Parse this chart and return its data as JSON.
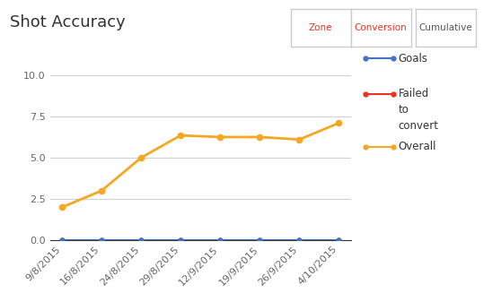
{
  "title": "Shot Accuracy",
  "x_labels": [
    "9/8/2015",
    "16/8/2015",
    "24/8/2015",
    "29/8/2015",
    "12/9/2015",
    "19/9/2015",
    "26/9/2015",
    "4/10/2015"
  ],
  "x_values": [
    0,
    1,
    2,
    3,
    4,
    5,
    6,
    7
  ],
  "goals": [
    0.0,
    0.0,
    0.0,
    0.0,
    0.0,
    0.0,
    0.0,
    0.0
  ],
  "failed_to_convert": [
    0.0,
    0.0,
    0.0,
    0.0,
    0.0,
    0.0,
    0.0,
    0.0
  ],
  "overall": [
    2.0,
    3.0,
    5.0,
    6.35,
    6.25,
    6.25,
    6.1,
    7.1
  ],
  "goals_color": "#4472c4",
  "failed_color": "#e8341c",
  "overall_color": "#f5a623",
  "ylim": [
    0,
    11
  ],
  "yticks": [
    0.0,
    2.5,
    5.0,
    7.5,
    10.0
  ],
  "ytick_labels": [
    "0.0",
    "2.5",
    "5.0",
    "7.5",
    "10.0"
  ],
  "background_color": "#ffffff",
  "grid_color": "#d0d0d0",
  "legend_labels": [
    "Goals",
    "Failed\nto\nconvert",
    "Overall"
  ],
  "title_fontsize": 13,
  "tick_fontsize": 8,
  "legend_fontsize": 8.5,
  "btn_zone": "Zone",
  "btn_conversion": "Conversion",
  "btn_cumulative": "Cumulative",
  "btn_active_color": "#e8341c",
  "btn_inactive_color": "#555555",
  "btn_border_color": "#cccccc"
}
